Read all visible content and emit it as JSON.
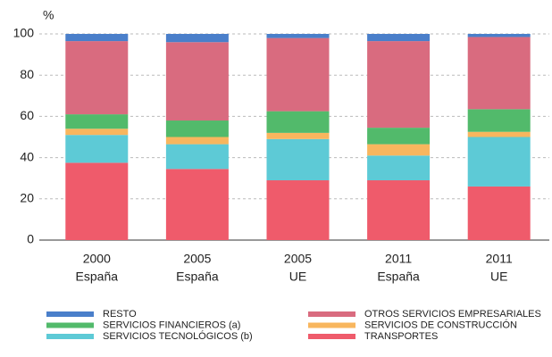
{
  "chart_data": {
    "type": "stacked_bar",
    "ylabel": "%",
    "categories": [
      [
        "2000",
        "España"
      ],
      [
        "2005",
        "España"
      ],
      [
        "2005",
        "UE"
      ],
      [
        "2011",
        "España"
      ],
      [
        "2011",
        "UE"
      ]
    ],
    "series": [
      {
        "name": "TRANSPORTES",
        "color": "#ef5b6b",
        "values": [
          37.5,
          34.5,
          29,
          29,
          26
        ]
      },
      {
        "name": "SERVICIOS TECNOLÓGICOS (b)",
        "color": "#5dcad6",
        "values": [
          13.5,
          12,
          20,
          12,
          24
        ]
      },
      {
        "name": "SERVICIOS DE CONSTRUCCIÓN",
        "color": "#f8b65e",
        "values": [
          3,
          3.5,
          3,
          5.5,
          2.5
        ]
      },
      {
        "name": "SERVICIOS FINANCIEROS (a)",
        "color": "#52ba6b",
        "values": [
          7,
          8,
          10.5,
          8,
          11
        ]
      },
      {
        "name": "OTROS SERVICIOS EMPRESARIALES",
        "color": "#d96b7f",
        "values": [
          35.5,
          38,
          35.5,
          42,
          35
        ]
      },
      {
        "name": "RESTO",
        "color": "#4a7fca",
        "values": [
          3.5,
          4,
          2,
          3.5,
          1.5
        ]
      }
    ],
    "ylim": [
      0,
      100
    ],
    "yticks": [
      0,
      20,
      40,
      60,
      80,
      100
    ],
    "grid": true
  }
}
